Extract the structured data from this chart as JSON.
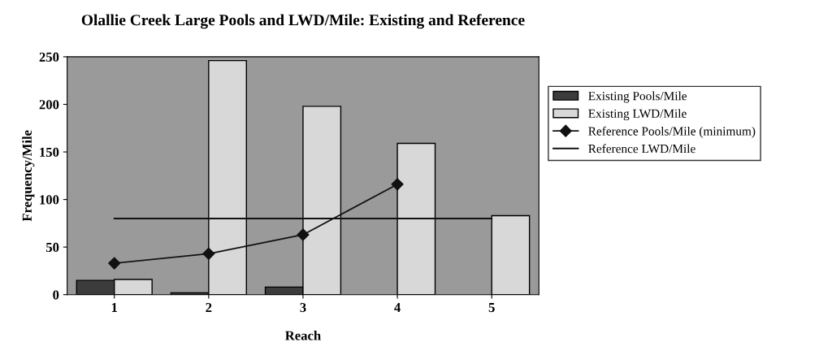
{
  "chart_data": {
    "type": "bar",
    "title": "Olallie Creek Large Pools and LWD/Mile: Existing and Reference",
    "xlabel": "Reach",
    "ylabel": "Frequency/Mile",
    "categories": [
      "1",
      "2",
      "3",
      "4",
      "5"
    ],
    "series": [
      {
        "name": "Existing Pools/Mile",
        "color": "#3c3c3c",
        "values": [
          15,
          2,
          8,
          null,
          null
        ]
      },
      {
        "name": "Existing LWD/Mile",
        "color": "#d8d8d8",
        "values": [
          16,
          246,
          198,
          159,
          83
        ]
      },
      {
        "name": "Reference Pools/Mile (minimum)",
        "type": "line",
        "color": "#111111",
        "marker": "diamond",
        "values": [
          33,
          43,
          63,
          116,
          null
        ]
      },
      {
        "name": "Reference LWD/Mile",
        "type": "line",
        "color": "#111111",
        "marker": "none",
        "values": [
          80,
          80,
          80,
          80,
          80
        ]
      }
    ],
    "ylim": [
      0,
      250
    ],
    "yticks": [
      0,
      50,
      100,
      150,
      200,
      250
    ],
    "grid": false,
    "legend": "right"
  }
}
